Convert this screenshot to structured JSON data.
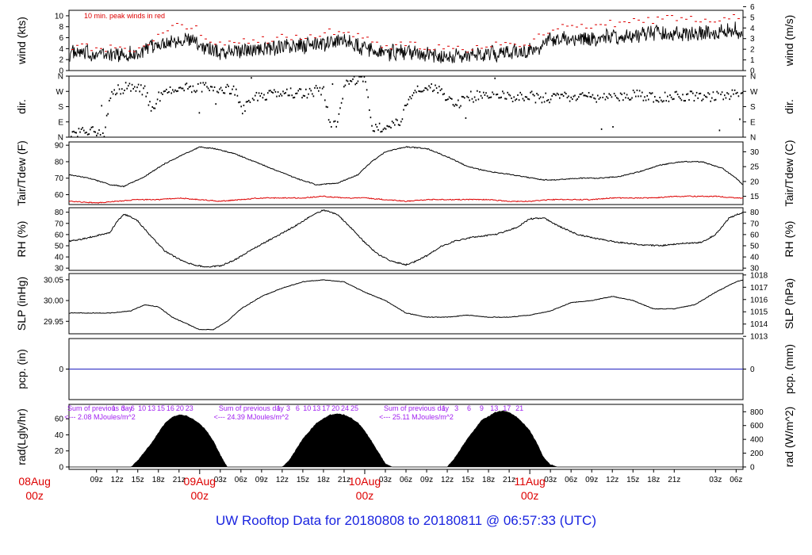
{
  "footer": {
    "title": "UW Rooftop Data for 20180808  to  20180811 @ 06:57:33  (UTC)"
  },
  "colors": {
    "peak": "#dd0000",
    "dew": "#dd0000",
    "precip_line": "#2020c0",
    "annotation": "#a020f0",
    "date_label": "#dd0000",
    "footer": "#1a24e0"
  },
  "time_axis": {
    "range_hours": [
      -19,
      79
    ],
    "ticks": [
      {
        "h": -15,
        "label": "09z"
      },
      {
        "h": -12,
        "label": "12z"
      },
      {
        "h": -9,
        "label": "15z"
      },
      {
        "h": -6,
        "label": "18z"
      },
      {
        "h": -3,
        "label": "21z"
      },
      {
        "h": 3,
        "label": "03z"
      },
      {
        "h": 6,
        "label": "06z"
      },
      {
        "h": 9,
        "label": "09z"
      },
      {
        "h": 12,
        "label": "12z"
      },
      {
        "h": 15,
        "label": "15z"
      },
      {
        "h": 18,
        "label": "18z"
      },
      {
        "h": 21,
        "label": "21z"
      },
      {
        "h": 27,
        "label": "03z"
      },
      {
        "h": 30,
        "label": "06z"
      },
      {
        "h": 33,
        "label": "09z"
      },
      {
        "h": 36,
        "label": "12z"
      },
      {
        "h": 39,
        "label": "15z"
      },
      {
        "h": 42,
        "label": "18z"
      },
      {
        "h": 45,
        "label": "21z"
      },
      {
        "h": 51,
        "label": "03z"
      },
      {
        "h": 54,
        "label": "06z"
      },
      {
        "h": 57,
        "label": "09z"
      },
      {
        "h": 60,
        "label": "12z"
      },
      {
        "h": 63,
        "label": "15z"
      },
      {
        "h": 66,
        "label": "18z"
      },
      {
        "h": 69,
        "label": "21z"
      },
      {
        "h": 75,
        "label": "03z"
      },
      {
        "h": 78,
        "label": "06z"
      }
    ],
    "day_labels": [
      {
        "h": -24,
        "date": "08Aug",
        "z": "00z"
      },
      {
        "h": 0,
        "date": "09Aug",
        "z": "00z"
      },
      {
        "h": 24,
        "date": "10Aug",
        "z": "00z"
      },
      {
        "h": 48,
        "date": "11Aug",
        "z": "00z"
      }
    ]
  },
  "chart_data": [
    {
      "type": "line",
      "panel": "wind",
      "ylabel_left": "wind (kts)",
      "ylabel_right": "wind (m/s)",
      "ylim": [
        0,
        11
      ],
      "left_ticks": [
        "0",
        "2",
        "4",
        "6",
        "8",
        "10"
      ],
      "right_ticks": [
        "0",
        "1",
        "2",
        "3",
        "4",
        "5",
        "6"
      ],
      "annotation": "10 min. peak winds in red",
      "series": [
        {
          "name": "wind",
          "x_hours": [
            -19,
            -15,
            -12,
            -9,
            -6,
            -3,
            -1,
            1,
            3,
            6,
            9,
            12,
            15,
            18,
            21,
            24,
            27,
            30,
            33,
            36,
            39,
            42,
            45,
            48,
            51,
            54,
            57,
            60,
            63,
            66,
            69,
            72,
            75,
            78,
            79
          ],
          "values": [
            3.2,
            3.0,
            2.9,
            3.0,
            4.8,
            5.8,
            5.5,
            4.2,
            3.3,
            3.7,
            3.9,
            4.3,
            4.5,
            4.8,
            5.5,
            4.0,
            3.2,
            3.4,
            3.0,
            2.5,
            2.8,
            3.0,
            3.4,
            3.6,
            5.5,
            6.0,
            5.8,
            6.2,
            6.5,
            6.8,
            6.8,
            6.7,
            6.8,
            7.5,
            7.0
          ]
        },
        {
          "name": "peak",
          "x_hours": [
            -19,
            -15,
            -12,
            -9,
            -6,
            -3,
            -1,
            1,
            3,
            6,
            9,
            12,
            15,
            18,
            21,
            24,
            27,
            30,
            33,
            36,
            39,
            42,
            45,
            48,
            51,
            54,
            57,
            60,
            63,
            66,
            69,
            72,
            75,
            78,
            79
          ],
          "values": [
            4.5,
            4.2,
            4.0,
            4.2,
            6.5,
            8.2,
            7.8,
            6.0,
            4.8,
            5.3,
            5.5,
            6.0,
            6.2,
            6.8,
            7.6,
            5.6,
            4.5,
            4.8,
            4.3,
            3.8,
            4.0,
            4.4,
            4.8,
            5.2,
            7.6,
            8.5,
            8.2,
            8.6,
            8.9,
            9.3,
            9.5,
            9.2,
            9.4,
            10.0,
            9.6
          ]
        }
      ]
    },
    {
      "type": "scatter",
      "panel": "dir",
      "ylabel_left": "dir.",
      "ylabel_right": "dir.",
      "ylim": [
        0,
        360
      ],
      "left_ticks": [
        "N",
        "E",
        "S",
        "W",
        "N"
      ],
      "right_ticks": [
        "N",
        "E",
        "S",
        "W",
        "N"
      ],
      "series": [
        {
          "name": "direction",
          "x_hours": [
            -19,
            -17,
            -16,
            -14,
            -13,
            -12,
            -10,
            -8,
            -7,
            -6,
            -5,
            -3,
            0,
            3,
            5,
            6,
            8,
            10,
            13,
            15,
            16,
            17,
            18,
            19,
            20,
            21,
            22,
            23,
            24,
            25,
            26,
            27,
            29,
            31,
            33,
            35,
            37,
            39,
            42,
            45,
            48,
            51,
            54,
            57,
            60,
            63,
            66,
            69,
            72,
            75,
            78,
            79
          ],
          "values": [
            10,
            30,
            50,
            20,
            250,
            280,
            300,
            270,
            150,
            240,
            260,
            290,
            295,
            290,
            280,
            150,
            240,
            250,
            260,
            255,
            265,
            275,
            270,
            60,
            80,
            300,
            330,
            350,
            355,
            40,
            55,
            60,
            90,
            290,
            300,
            270,
            180,
            240,
            250,
            240,
            235,
            230,
            240,
            235,
            240,
            250,
            235,
            240,
            245,
            240,
            250,
            245
          ]
        }
      ]
    },
    {
      "type": "line",
      "panel": "temp",
      "ylabel_left": "Tair/Tdew (F)",
      "ylabel_right": "Tair/Tdew (C)",
      "ylim": [
        54,
        92
      ],
      "left_ticks": [
        "60",
        "70",
        "80",
        "90"
      ],
      "right_ticks": [
        "15",
        "20",
        "25",
        "30"
      ],
      "series": [
        {
          "name": "Tair",
          "x_hours": [
            -19,
            -16,
            -13,
            -11,
            -8,
            -5,
            -2,
            0,
            2,
            5,
            8,
            11,
            14,
            17,
            20,
            23,
            25,
            27,
            30,
            33,
            36,
            39,
            42,
            44,
            47,
            50,
            52,
            55,
            58,
            61,
            64,
            67,
            70,
            73,
            76,
            78,
            79
          ],
          "values": [
            72,
            70,
            66,
            65,
            71,
            79,
            85,
            89,
            88,
            85,
            80,
            75,
            70,
            66,
            67,
            72,
            80,
            86,
            89,
            88,
            83,
            77,
            74,
            73,
            71,
            69,
            69,
            70,
            70,
            71,
            74,
            78,
            80,
            80,
            76,
            70,
            66
          ]
        },
        {
          "name": "Tdew",
          "x_hours": [
            -19,
            -15,
            -12,
            -9,
            -6,
            -3,
            0,
            3,
            6,
            9,
            12,
            15,
            18,
            21,
            24,
            27,
            30,
            33,
            36,
            39,
            42,
            45,
            48,
            51,
            54,
            57,
            60,
            63,
            66,
            69,
            72,
            75,
            78,
            79
          ],
          "values": [
            56,
            55,
            56,
            57,
            57,
            58,
            57,
            56,
            57,
            58,
            58,
            58,
            59,
            58,
            58,
            57,
            56,
            57,
            57,
            57,
            57,
            56,
            56,
            57,
            57,
            57,
            58,
            58,
            58,
            59,
            59,
            59,
            58,
            58
          ]
        }
      ]
    },
    {
      "type": "line",
      "panel": "rh",
      "ylabel_left": "RH (%)",
      "ylabel_right": "RH (%)",
      "ylim": [
        28,
        84
      ],
      "left_ticks": [
        "30",
        "40",
        "50",
        "60",
        "70",
        "80"
      ],
      "right_ticks": [
        "30",
        "40",
        "50",
        "60",
        "70",
        "80"
      ],
      "series": [
        {
          "name": "RH",
          "x_hours": [
            -19,
            -17,
            -15,
            -13,
            -12,
            -11,
            -10,
            -9,
            -7,
            -5,
            -3,
            -1,
            1,
            3,
            5,
            8,
            11,
            14,
            16,
            18,
            20,
            22,
            24,
            26,
            28,
            30,
            31,
            33,
            35,
            37,
            40,
            43,
            46,
            48,
            50,
            52,
            55,
            58,
            61,
            64,
            67,
            70,
            73,
            75,
            77,
            79
          ],
          "values": [
            54,
            56,
            59,
            62,
            72,
            78,
            76,
            72,
            58,
            45,
            38,
            33,
            31,
            32,
            37,
            48,
            58,
            68,
            76,
            82,
            78,
            66,
            53,
            42,
            36,
            33,
            35,
            41,
            49,
            54,
            58,
            60,
            66,
            74,
            75,
            68,
            60,
            56,
            53,
            51,
            50,
            52,
            53,
            60,
            75,
            80
          ]
        }
      ]
    },
    {
      "type": "line",
      "panel": "slp",
      "ylabel_left": "SLP (inHg)",
      "ylabel_right": "SLP (hPa)",
      "ylim": [
        29.92,
        30.065
      ],
      "left_ticks": [
        "29.95",
        "30.00",
        "30.05"
      ],
      "right_ticks": [
        "1013",
        "1014",
        "1015",
        "1016",
        "1017",
        "1018"
      ],
      "series": [
        {
          "name": "SLP",
          "x_hours": [
            -19,
            -16,
            -13,
            -10,
            -8,
            -6,
            -4,
            -2,
            0,
            2,
            4,
            6,
            9,
            12,
            15,
            18,
            21,
            24,
            27,
            30,
            33,
            36,
            39,
            42,
            45,
            48,
            51,
            54,
            57,
            60,
            63,
            66,
            69,
            72,
            75,
            78,
            79
          ],
          "values": [
            29.97,
            29.97,
            29.97,
            29.975,
            29.99,
            29.985,
            29.96,
            29.945,
            29.93,
            29.93,
            29.95,
            29.98,
            30.01,
            30.03,
            30.045,
            30.05,
            30.045,
            30.02,
            30.0,
            29.97,
            29.96,
            29.96,
            29.965,
            29.96,
            29.96,
            29.965,
            29.975,
            29.995,
            30.0,
            30.01,
            30.0,
            29.98,
            29.98,
            29.99,
            30.02,
            30.045,
            30.05
          ]
        }
      ]
    },
    {
      "type": "line",
      "panel": "pcp",
      "ylabel_left": "pcp. (in)",
      "ylabel_right": "pcp. (mm)",
      "ylim": [
        -1,
        1
      ],
      "left_ticks": [
        "0"
      ],
      "right_ticks": [
        "0"
      ],
      "series": [
        {
          "name": "precip",
          "x_hours": [
            -19,
            79
          ],
          "values": [
            0,
            0
          ]
        }
      ]
    },
    {
      "type": "area",
      "panel": "rad",
      "ylabel_left": "rad(Lgly/hr)",
      "ylabel_right": "rad (W/m^2)",
      "ylim": [
        -3,
        78
      ],
      "left_ticks": [
        "0",
        "20",
        "40",
        "60"
      ],
      "right_ticks": [
        "0",
        "200",
        "400",
        "600",
        "800"
      ],
      "hour_marks": [
        "1",
        "3",
        "6",
        "10",
        "13",
        "15",
        "16",
        "20",
        "23",
        "1",
        "3",
        "6",
        "10",
        "13",
        "17",
        "20",
        "24",
        "25",
        "1",
        "3",
        "6",
        "9",
        "13",
        "17",
        "21"
      ],
      "daily_sums": [
        {
          "h": -14.5,
          "line1": "Sum of previous day",
          "line2": "<--- 2.08 MJoules/m^2"
        },
        {
          "h": 7.5,
          "line1": "Sum of previous day",
          "line2": "<--- 24.39 MJoules/m^2"
        },
        {
          "h": 31.5,
          "line1": "Sum of previous day",
          "line2": "<--- 25.11 MJoules/m^2"
        }
      ],
      "series": [
        {
          "name": "radiation",
          "x_hours": [
            -19,
            -10,
            -9,
            -7,
            -5,
            -4,
            -3,
            -2,
            -1,
            0,
            1,
            2,
            3,
            4,
            12,
            13,
            15,
            17,
            19,
            20,
            21,
            22,
            23,
            24,
            25,
            26,
            27,
            28,
            36,
            37,
            39,
            41,
            43,
            44,
            45,
            46,
            47,
            48,
            49,
            50,
            51,
            52,
            79
          ],
          "values": [
            0,
            0,
            8,
            30,
            55,
            62,
            65,
            64,
            60,
            54,
            45,
            32,
            15,
            0,
            0,
            8,
            35,
            55,
            65,
            66,
            65,
            61,
            55,
            45,
            32,
            18,
            4,
            0,
            0,
            10,
            36,
            58,
            68,
            70,
            68,
            63,
            55,
            45,
            30,
            12,
            3,
            0,
            0
          ]
        }
      ]
    }
  ]
}
